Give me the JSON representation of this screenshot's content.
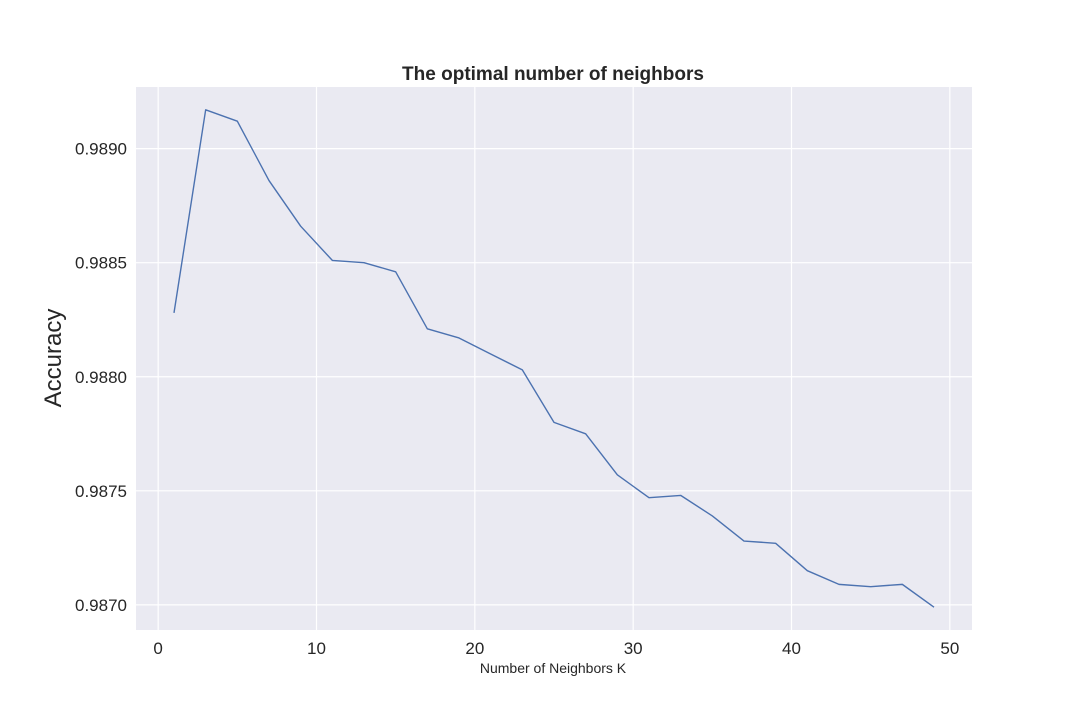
{
  "chart_data": {
    "type": "line",
    "title": "The optimal number of neighbors",
    "xlabel": "Number of Neighbors K",
    "ylabel": "Accuracy",
    "xlim": [
      -1.4,
      51.4
    ],
    "ylim": [
      0.98689,
      0.98927
    ],
    "xticks": [
      0,
      10,
      20,
      30,
      40,
      50
    ],
    "xtick_labels": [
      "0",
      "10",
      "20",
      "30",
      "40",
      "50"
    ],
    "yticks": [
      0.987,
      0.9875,
      0.988,
      0.9885,
      0.989
    ],
    "ytick_labels": [
      "0.9870",
      "0.9875",
      "0.9880",
      "0.9885",
      "0.9890"
    ],
    "grid": true,
    "background": "#eaeaf2",
    "line_color": "#4c72b0",
    "series": [
      {
        "x": [
          1,
          3,
          5,
          7,
          9,
          11,
          13,
          15,
          17,
          19,
          21,
          23,
          25,
          27,
          29,
          31,
          33,
          35,
          37,
          39,
          41,
          43,
          45,
          47,
          49
        ],
        "values": [
          0.98828,
          0.98917,
          0.98912,
          0.98886,
          0.98866,
          0.98851,
          0.9885,
          0.98846,
          0.98821,
          0.98817,
          0.9881,
          0.98803,
          0.9878,
          0.98775,
          0.98757,
          0.98747,
          0.98748,
          0.98739,
          0.98728,
          0.98727,
          0.98715,
          0.98709,
          0.98708,
          0.98709,
          0.98699
        ]
      }
    ]
  }
}
